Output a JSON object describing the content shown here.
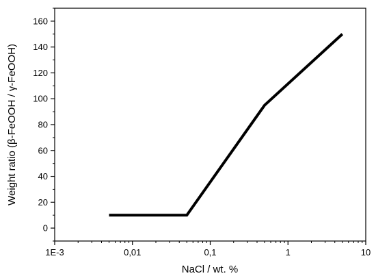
{
  "chart_data": {
    "type": "line",
    "x_scale": "log",
    "xlabel": "NaCl / wt. %",
    "ylabel": "Weight ratio (β-FeOOH / γ-FeOOH)",
    "xlim": [
      0.001,
      10
    ],
    "ylim": [
      -10,
      170
    ],
    "x_ticks": [
      0.001,
      0.01,
      0.1,
      1,
      10
    ],
    "x_tick_labels": [
      "1E-3",
      "0,01",
      "0,1",
      "1",
      "10"
    ],
    "y_ticks": [
      0,
      20,
      40,
      60,
      80,
      100,
      120,
      140,
      160
    ],
    "y_tick_labels": [
      "0",
      "20",
      "40",
      "60",
      "80",
      "100",
      "120",
      "140",
      "160"
    ],
    "grid": false,
    "line_color": "#000000",
    "series": [
      {
        "x": [
          0.005,
          0.05,
          0.5,
          5
        ],
        "y": [
          10,
          10,
          95,
          150
        ]
      }
    ]
  }
}
